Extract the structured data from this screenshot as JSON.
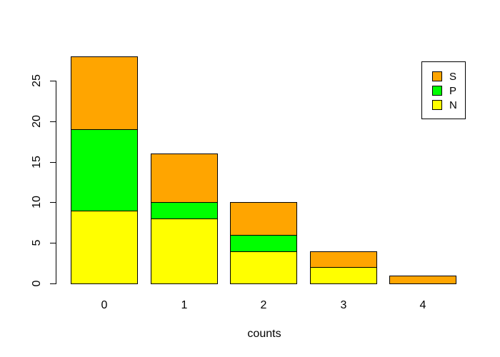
{
  "chart_data": {
    "type": "bar",
    "stacked": true,
    "title": "",
    "xlabel": "counts",
    "ylabel": "",
    "categories": [
      "0",
      "1",
      "2",
      "3",
      "4"
    ],
    "series": [
      {
        "name": "N",
        "color": "#FFFF00",
        "values": [
          9,
          8,
          4,
          2,
          0
        ]
      },
      {
        "name": "P",
        "color": "#00FF00",
        "values": [
          10,
          2,
          2,
          0,
          0
        ]
      },
      {
        "name": "S",
        "color": "#FFA500",
        "values": [
          9,
          6,
          4,
          2,
          1
        ]
      }
    ],
    "stack_order_bottom_to_top": [
      "N",
      "P",
      "S"
    ],
    "totals": [
      28,
      16,
      10,
      4,
      1
    ],
    "yticks": [
      0,
      5,
      10,
      15,
      20,
      25
    ],
    "ylim": [
      0,
      28
    ],
    "grid": false,
    "bar_border_color": "#000000",
    "background_color": "#FFFFFF",
    "legend": {
      "position": "top-right",
      "items_top_to_bottom": [
        {
          "label": "S",
          "color": "#FFA500"
        },
        {
          "label": "P",
          "color": "#00FF00"
        },
        {
          "label": "N",
          "color": "#FFFF00"
        }
      ]
    }
  }
}
